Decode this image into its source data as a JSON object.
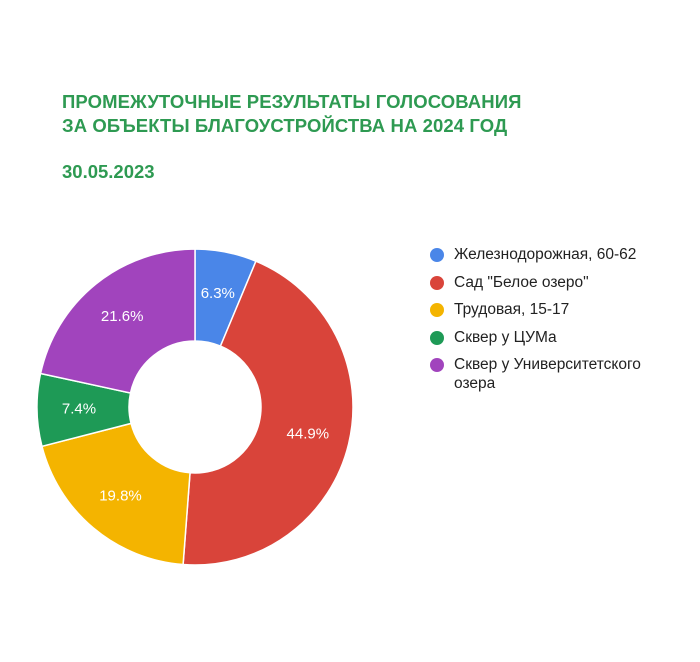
{
  "header": {
    "title_line1": "ПРОМЕЖУТОЧНЫЕ РЕЗУЛЬТАТЫ ГОЛОСОВАНИЯ",
    "title_line2": "ЗА ОБЪЕКТЫ БЛАГОУСТРОЙСТВА НА 2024 ГОД",
    "date": "30.05.2023",
    "accent_color": "#2e9a52"
  },
  "chart_data": {
    "type": "pie",
    "donut": true,
    "legend_position": "right",
    "series": [
      {
        "name": "Железнодорожная, 60-62",
        "value": 6.3,
        "label": "6.3%",
        "color": "#4a86e8"
      },
      {
        "name": "Сад \"Белое озеро\"",
        "value": 44.9,
        "label": "44.9%",
        "color": "#d9443a"
      },
      {
        "name": "Трудовая, 15-17",
        "value": 19.8,
        "label": "19.8%",
        "color": "#f4b400"
      },
      {
        "name": "Сквер у ЦУМа",
        "value": 7.4,
        "label": "7.4%",
        "color": "#1e9a56"
      },
      {
        "name": "Сквер у Университетского озера",
        "value": 21.6,
        "label": "21.6%",
        "color": "#a144bd"
      }
    ]
  }
}
